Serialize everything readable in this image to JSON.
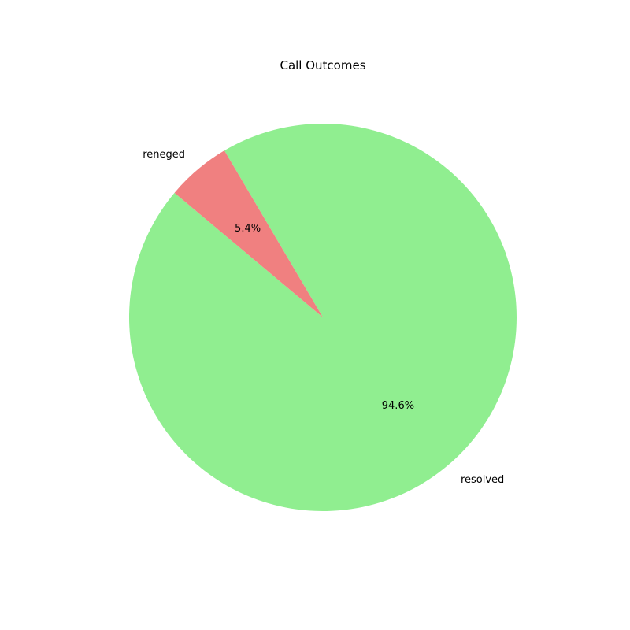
{
  "chart_data": {
    "type": "pie",
    "title": "Call Outcomes",
    "slices": [
      {
        "label": "resolved",
        "value": 94.6,
        "pct_label": "94.6%",
        "color": "#90ee90"
      },
      {
        "label": "reneged",
        "value": 5.4,
        "pct_label": "5.4%",
        "color": "#f08080"
      }
    ],
    "start_angle_deg": 140,
    "direction": "counterclockwise"
  }
}
